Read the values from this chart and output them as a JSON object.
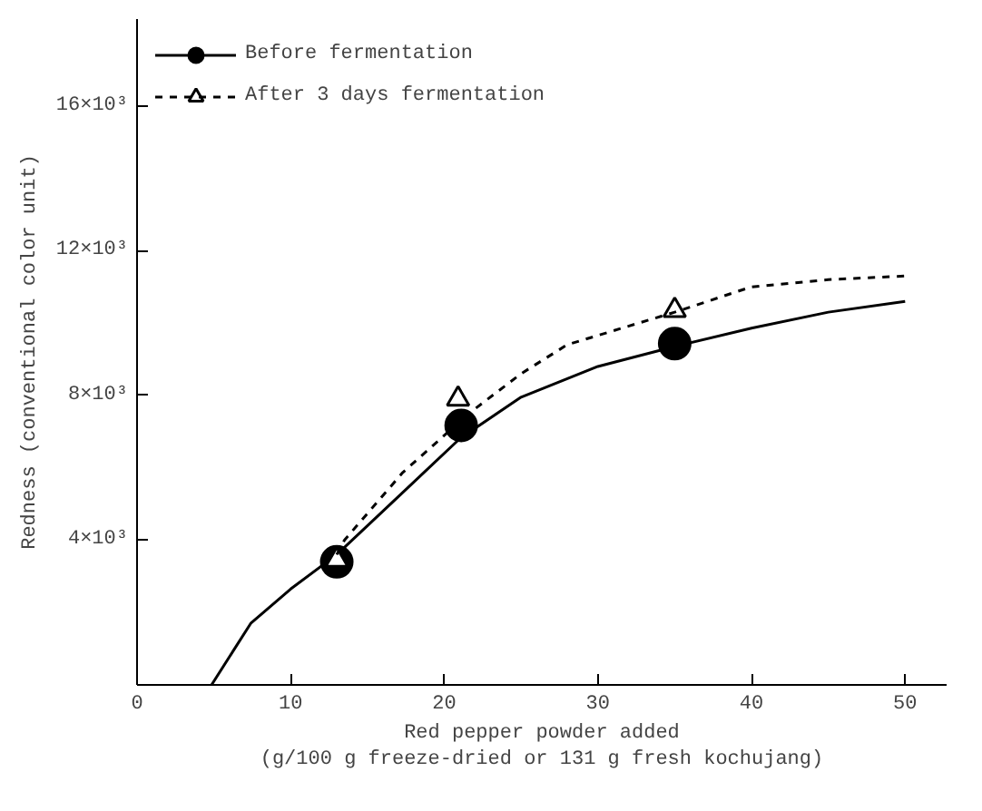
{
  "chart_data": {
    "type": "scatter",
    "xlabel": "Red pepper powder added\n(g/100 g freeze-dried or 131 g fresh kochujang)",
    "ylabel": "Redness (conventional color unit)",
    "xlim": [
      0,
      52.7
    ],
    "ylim": [
      0,
      18400
    ],
    "xticks": [
      0,
      10,
      20,
      30,
      40,
      50
    ],
    "yticks": [
      {
        "value": 0,
        "label": null
      },
      {
        "value": 4000,
        "label": "4×10³"
      },
      {
        "value": 8000,
        "label": "8×10³"
      },
      {
        "value": 12000,
        "label": "12×10³"
      },
      {
        "value": 16000,
        "label": "16×10³"
      }
    ],
    "grid": false,
    "legend": "top left",
    "series": [
      {
        "name": "Before fermentation",
        "marker": "circle",
        "color": "#000000",
        "x": [
          13,
          21.1,
          35
        ],
        "values": [
          3400,
          7170,
          9430
        ]
      },
      {
        "type": "line",
        "line_style": "solid",
        "color": "#000000",
        "x": [
          4.85,
          7.4,
          10,
          13,
          17,
          21,
          25,
          30,
          35,
          40,
          45,
          50
        ],
        "values": [
          0,
          1700,
          2650,
          3600,
          5200,
          6800,
          7950,
          8800,
          9350,
          9860,
          10300,
          10600
        ]
      },
      {
        "name": "After 3 days fermentation",
        "marker": "triangle",
        "color": "#ffffff",
        "x": [
          13,
          20.9,
          35
        ],
        "values": [
          3450,
          7900,
          10350
        ]
      },
      {
        "type": "line",
        "line_style": "dashed",
        "color": "#000000",
        "x": [
          13,
          13.5,
          17.3,
          21.6,
          25,
          28,
          35,
          40,
          45,
          50
        ],
        "values": [
          3600,
          4000,
          5870,
          7500,
          8600,
          9400,
          10300,
          11000,
          11200,
          11300
        ]
      }
    ]
  }
}
